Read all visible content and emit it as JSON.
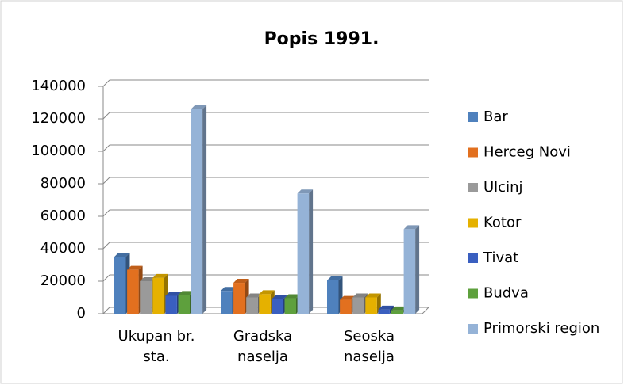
{
  "chart_data": {
    "type": "bar",
    "title": "Popis 1991.",
    "categories": [
      "Ukupan br. sta.",
      "Gradska naselja",
      "Seoska naselja"
    ],
    "series": [
      {
        "name": "Bar",
        "color": "#4f81bd",
        "values": [
          35000,
          14000,
          20500
        ]
      },
      {
        "name": "Herceg Novi",
        "color": "#e2701f",
        "values": [
          27000,
          19000,
          8500
        ]
      },
      {
        "name": "Ulcinj",
        "color": "#9a9a9a",
        "values": [
          20000,
          10000,
          10000
        ]
      },
      {
        "name": "Kotor",
        "color": "#e5b100",
        "values": [
          22000,
          12000,
          10000
        ]
      },
      {
        "name": "Tivat",
        "color": "#3a5fc0",
        "values": [
          11000,
          9000,
          2500
        ]
      },
      {
        "name": "Budva",
        "color": "#5ea03d",
        "values": [
          11500,
          9500,
          2000
        ]
      },
      {
        "name": "Primorski region",
        "color": "#95b3d7",
        "values": [
          126000,
          74000,
          52000
        ]
      }
    ],
    "ylim": [
      0,
      140000
    ],
    "yticks": [
      0,
      20000,
      40000,
      60000,
      80000,
      100000,
      120000,
      140000
    ],
    "grid": true,
    "legend": "right"
  }
}
